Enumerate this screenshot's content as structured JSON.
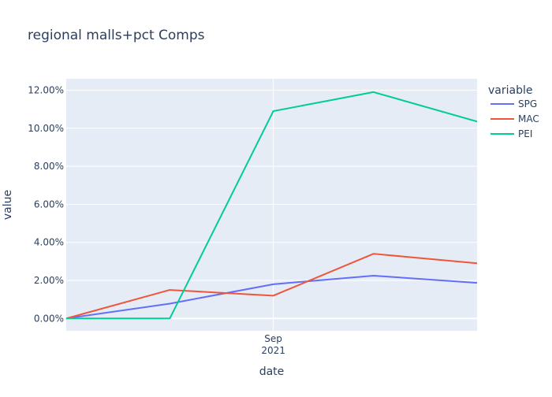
{
  "chart_data": {
    "type": "line",
    "title": "regional malls+pct Comps",
    "xlabel": "date",
    "ylabel": "value",
    "x": [
      "2021-07-01",
      "2021-08-01",
      "2021-09-01",
      "2021-10-01",
      "2021-11-01"
    ],
    "x_range": [
      "2021-07-01",
      "2021-11-01"
    ],
    "x_ticks": [
      {
        "date": "2021-09-01",
        "label_line1": "Sep",
        "label_line2": "2021"
      }
    ],
    "ylim": [
      -0.0065,
      0.126
    ],
    "y_ticks": [
      0,
      0.02,
      0.04,
      0.06,
      0.08,
      0.1,
      0.12
    ],
    "y_tick_labels": [
      "0.00%",
      "2.00%",
      "4.00%",
      "6.00%",
      "8.00%",
      "10.00%",
      "12.00%"
    ],
    "grid": true,
    "legend": {
      "title": "variable",
      "placement": "right"
    },
    "series": [
      {
        "name": "SPG",
        "color": "#636efa",
        "values": [
          0.0,
          0.0078,
          0.018,
          0.0225,
          0.0187
        ]
      },
      {
        "name": "MAC",
        "color": "#ef553b",
        "values": [
          0.0,
          0.015,
          0.012,
          0.034,
          0.029
        ]
      },
      {
        "name": "PEI",
        "color": "#00cc96",
        "values": [
          0.0,
          0.0,
          0.109,
          0.119,
          0.1035
        ]
      }
    ],
    "colors": {
      "plot_bg": "#e5ecf6",
      "grid": "#ffffff",
      "text": "#2a3f5f"
    }
  }
}
